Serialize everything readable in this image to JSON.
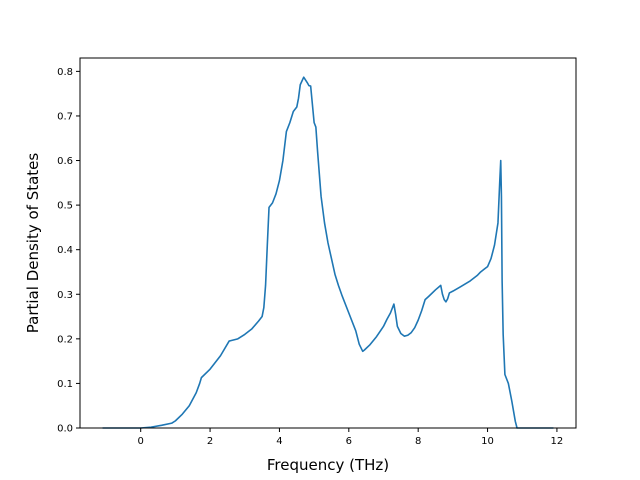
{
  "chart_data": {
    "type": "line",
    "title": "",
    "xlabel": "Frequency (THz)",
    "ylabel": "Partial Density of States",
    "xlim": [
      -1.75,
      12.55
    ],
    "ylim": [
      0.0,
      0.83
    ],
    "x_ticks": [
      0,
      2,
      4,
      6,
      8,
      10,
      12
    ],
    "y_ticks": [
      0.0,
      0.1,
      0.2,
      0.3,
      0.4,
      0.5,
      0.6,
      0.7,
      0.8
    ],
    "x_tick_labels": [
      "0",
      "2",
      "4",
      "6",
      "8",
      "10",
      "12"
    ],
    "y_tick_labels": [
      "0.0",
      "0.1",
      "0.2",
      "0.3",
      "0.4",
      "0.5",
      "0.6",
      "0.7",
      "0.8"
    ],
    "grid": false,
    "legend": "none",
    "series": [
      {
        "color": "#1f77b4",
        "x": [
          -1.1,
          0.0,
          0.3,
          0.6,
          0.9,
          1.0,
          1.2,
          1.4,
          1.6,
          1.7,
          1.75,
          2.0,
          2.3,
          2.55,
          2.6,
          2.8,
          3.0,
          3.2,
          3.4,
          3.5,
          3.55,
          3.6,
          3.65,
          3.7,
          3.8,
          3.9,
          4.0,
          4.1,
          4.2,
          4.3,
          4.4,
          4.5,
          4.55,
          4.6,
          4.7,
          4.8,
          4.85,
          4.9,
          5.0,
          5.05,
          5.1,
          5.2,
          5.3,
          5.4,
          5.5,
          5.6,
          5.7,
          5.8,
          6.0,
          6.2,
          6.3,
          6.4,
          6.45,
          6.6,
          6.8,
          7.0,
          7.1,
          7.2,
          7.3,
          7.35,
          7.4,
          7.5,
          7.6,
          7.7,
          7.8,
          7.9,
          8.0,
          8.1,
          8.2,
          8.3,
          8.5,
          8.65,
          8.7,
          8.75,
          8.8,
          8.85,
          8.9,
          9.0,
          9.2,
          9.5,
          9.7,
          9.8,
          9.9,
          10.0,
          10.1,
          10.2,
          10.3,
          10.35,
          10.38,
          10.4,
          10.42,
          10.45,
          10.5,
          10.6,
          10.7,
          10.8,
          10.85,
          11.0,
          11.5,
          11.9
        ],
        "y": [
          0.0,
          0.0,
          0.002,
          0.006,
          0.011,
          0.016,
          0.031,
          0.05,
          0.079,
          0.1,
          0.113,
          0.132,
          0.162,
          0.195,
          0.196,
          0.2,
          0.21,
          0.222,
          0.24,
          0.25,
          0.27,
          0.32,
          0.41,
          0.495,
          0.505,
          0.525,
          0.555,
          0.6,
          0.665,
          0.685,
          0.71,
          0.72,
          0.74,
          0.77,
          0.787,
          0.775,
          0.768,
          0.767,
          0.685,
          0.675,
          0.62,
          0.52,
          0.46,
          0.415,
          0.38,
          0.345,
          0.32,
          0.298,
          0.258,
          0.218,
          0.188,
          0.172,
          0.175,
          0.186,
          0.205,
          0.228,
          0.244,
          0.258,
          0.278,
          0.255,
          0.228,
          0.212,
          0.206,
          0.208,
          0.214,
          0.225,
          0.242,
          0.263,
          0.288,
          0.295,
          0.31,
          0.32,
          0.3,
          0.288,
          0.283,
          0.29,
          0.303,
          0.307,
          0.316,
          0.33,
          0.342,
          0.35,
          0.356,
          0.362,
          0.38,
          0.41,
          0.46,
          0.55,
          0.6,
          0.52,
          0.33,
          0.21,
          0.12,
          0.1,
          0.06,
          0.015,
          0.0,
          0.0,
          0.0,
          0.0
        ]
      }
    ]
  }
}
